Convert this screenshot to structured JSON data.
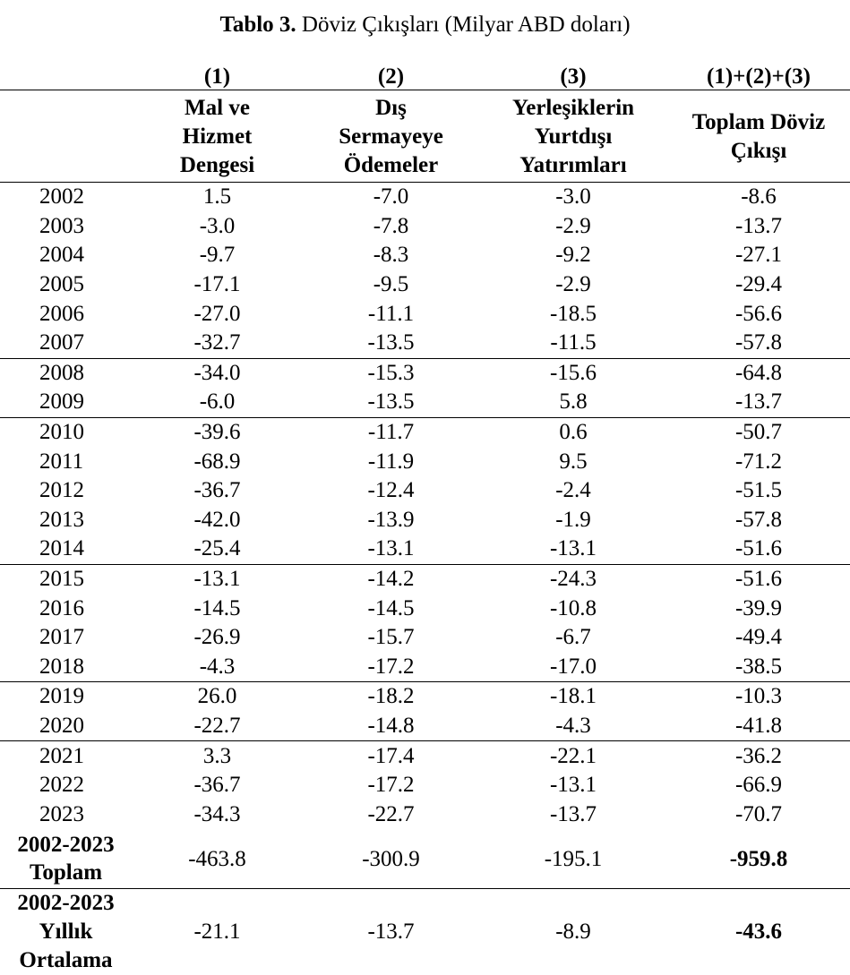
{
  "title": {
    "bold": "Tablo 3.",
    "rest": " Döviz Çıkışları (Milyar ABD doları)"
  },
  "columns": [
    {
      "number": "(1)",
      "label_lines": [
        "Mal ve",
        "Hizmet",
        "Dengesi"
      ]
    },
    {
      "number": "(2)",
      "label_lines": [
        "Dış",
        "Sermayeye",
        "Ödemeler"
      ]
    },
    {
      "number": "(3)",
      "label_lines": [
        "Yerleşiklerin",
        "Yurtdışı",
        "Yatırımları"
      ]
    },
    {
      "number": "(1)+(2)+(3)",
      "label_lines": [
        "Toplam Döviz",
        "Çıkışı"
      ]
    }
  ],
  "rows": [
    {
      "year": "2002",
      "values": [
        "1.5",
        "-7.0",
        "-3.0",
        "-8.6"
      ]
    },
    {
      "year": "2003",
      "values": [
        "-3.0",
        "-7.8",
        "-2.9",
        "-13.7"
      ]
    },
    {
      "year": "2004",
      "values": [
        "-9.7",
        "-8.3",
        "-9.2",
        "-27.1"
      ]
    },
    {
      "year": "2005",
      "values": [
        "-17.1",
        "-9.5",
        "-2.9",
        "-29.4"
      ]
    },
    {
      "year": "2006",
      "values": [
        "-27.0",
        "-11.1",
        "-18.5",
        "-56.6"
      ]
    },
    {
      "year": "2007",
      "values": [
        "-32.7",
        "-13.5",
        "-11.5",
        "-57.8"
      ]
    },
    {
      "year": "2008",
      "values": [
        "-34.0",
        "-15.3",
        "-15.6",
        "-64.8"
      ]
    },
    {
      "year": "2009",
      "values": [
        "-6.0",
        "-13.5",
        "5.8",
        "-13.7"
      ]
    },
    {
      "year": "2010",
      "values": [
        "-39.6",
        "-11.7",
        "0.6",
        "-50.7"
      ]
    },
    {
      "year": "2011",
      "values": [
        "-68.9",
        "-11.9",
        "9.5",
        "-71.2"
      ]
    },
    {
      "year": "2012",
      "values": [
        "-36.7",
        "-12.4",
        "-2.4",
        "-51.5"
      ]
    },
    {
      "year": "2013",
      "values": [
        "-42.0",
        "-13.9",
        "-1.9",
        "-57.8"
      ]
    },
    {
      "year": "2014",
      "values": [
        "-25.4",
        "-13.1",
        "-13.1",
        "-51.6"
      ]
    },
    {
      "year": "2015",
      "values": [
        "-13.1",
        "-14.2",
        "-24.3",
        "-51.6"
      ]
    },
    {
      "year": "2016",
      "values": [
        "-14.5",
        "-14.5",
        "-10.8",
        "-39.9"
      ]
    },
    {
      "year": "2017",
      "values": [
        "-26.9",
        "-15.7",
        "-6.7",
        "-49.4"
      ]
    },
    {
      "year": "2018",
      "values": [
        "-4.3",
        "-17.2",
        "-17.0",
        "-38.5"
      ]
    },
    {
      "year": "2019",
      "values": [
        "26.0",
        "-18.2",
        "-18.1",
        "-10.3"
      ]
    },
    {
      "year": "2020",
      "values": [
        "-22.7",
        "-14.8",
        "-4.3",
        "-41.8"
      ]
    },
    {
      "year": "2021",
      "values": [
        "3.3",
        "-17.4",
        "-22.1",
        "-36.2"
      ]
    },
    {
      "year": "2022",
      "values": [
        "-36.7",
        "-17.2",
        "-13.1",
        "-66.9"
      ]
    },
    {
      "year": "2023",
      "values": [
        "-34.3",
        "-22.7",
        "-13.7",
        "-70.7"
      ]
    }
  ],
  "total": {
    "label_lines": [
      "2002-2023",
      "Toplam"
    ],
    "values": [
      "-463.8",
      "-300.9",
      "-195.1",
      "-959.8"
    ]
  },
  "average": {
    "label_lines": [
      "2002-2023",
      "Yıllık",
      "Ortalama"
    ],
    "values": [
      "-21.1",
      "-13.7",
      "-8.9",
      "-43.6"
    ]
  }
}
